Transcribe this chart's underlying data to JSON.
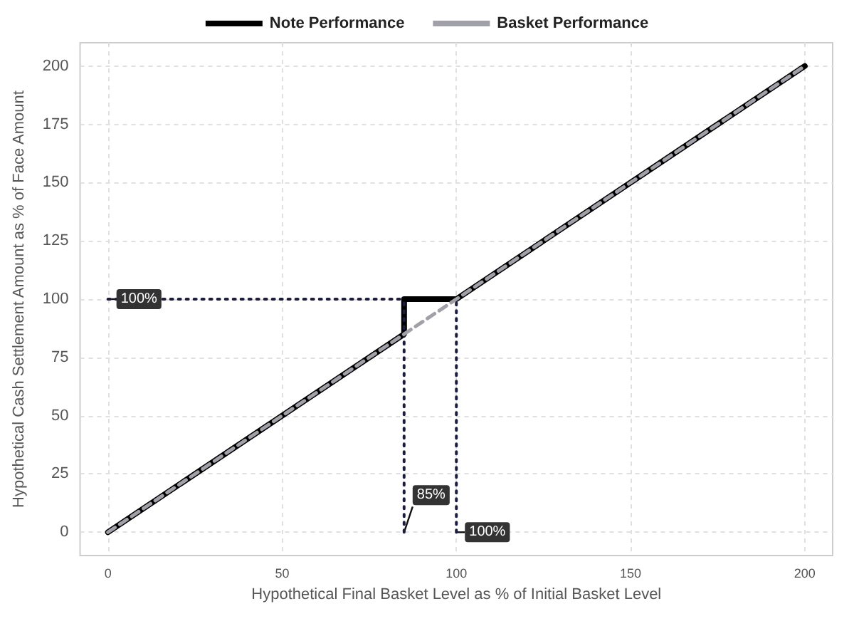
{
  "chart_data": {
    "type": "line",
    "xlabel": "Hypothetical Final Basket Level as % of Initial Basket Level",
    "ylabel": "Hypothetical Cash Settlement Amount as % of Face Amount",
    "xlim": [
      -8,
      208
    ],
    "xticks": [
      0,
      50,
      100,
      150,
      200
    ],
    "ylim": [
      -10,
      210
    ],
    "yticks": [
      0,
      25,
      50,
      75,
      100,
      125,
      150,
      175,
      200
    ],
    "grid": true,
    "legend": "top",
    "marker": "none",
    "series": [
      {
        "name": "Note Performance",
        "color": "#000000",
        "line_style": "solid",
        "x": [
          0,
          85,
          85,
          100,
          200
        ],
        "values": [
          0,
          85,
          100,
          100,
          200
        ]
      },
      {
        "name": "Basket Performance",
        "color": "#a0a0a8",
        "line_style": "dashed",
        "x": [
          0,
          200
        ],
        "values": [
          0,
          200
        ]
      },
      {
        "color": "#1c1c3c",
        "line_style": "dotted",
        "x": [
          0,
          85
        ],
        "values": [
          100,
          100
        ]
      },
      {
        "color": "#1c1c3c",
        "line_style": "dotted",
        "x": [
          85,
          85
        ],
        "values": [
          0,
          100
        ]
      },
      {
        "color": "#1c1c3c",
        "line_style": "dotted",
        "x": [
          100,
          100
        ],
        "values": [
          0,
          100
        ]
      }
    ],
    "annotations": [
      {
        "text": "100%",
        "x": 0,
        "y": 100
      },
      {
        "text": "85%",
        "x": 85,
        "y": 0
      },
      {
        "text": "100%",
        "x": 100,
        "y": 0
      }
    ]
  }
}
